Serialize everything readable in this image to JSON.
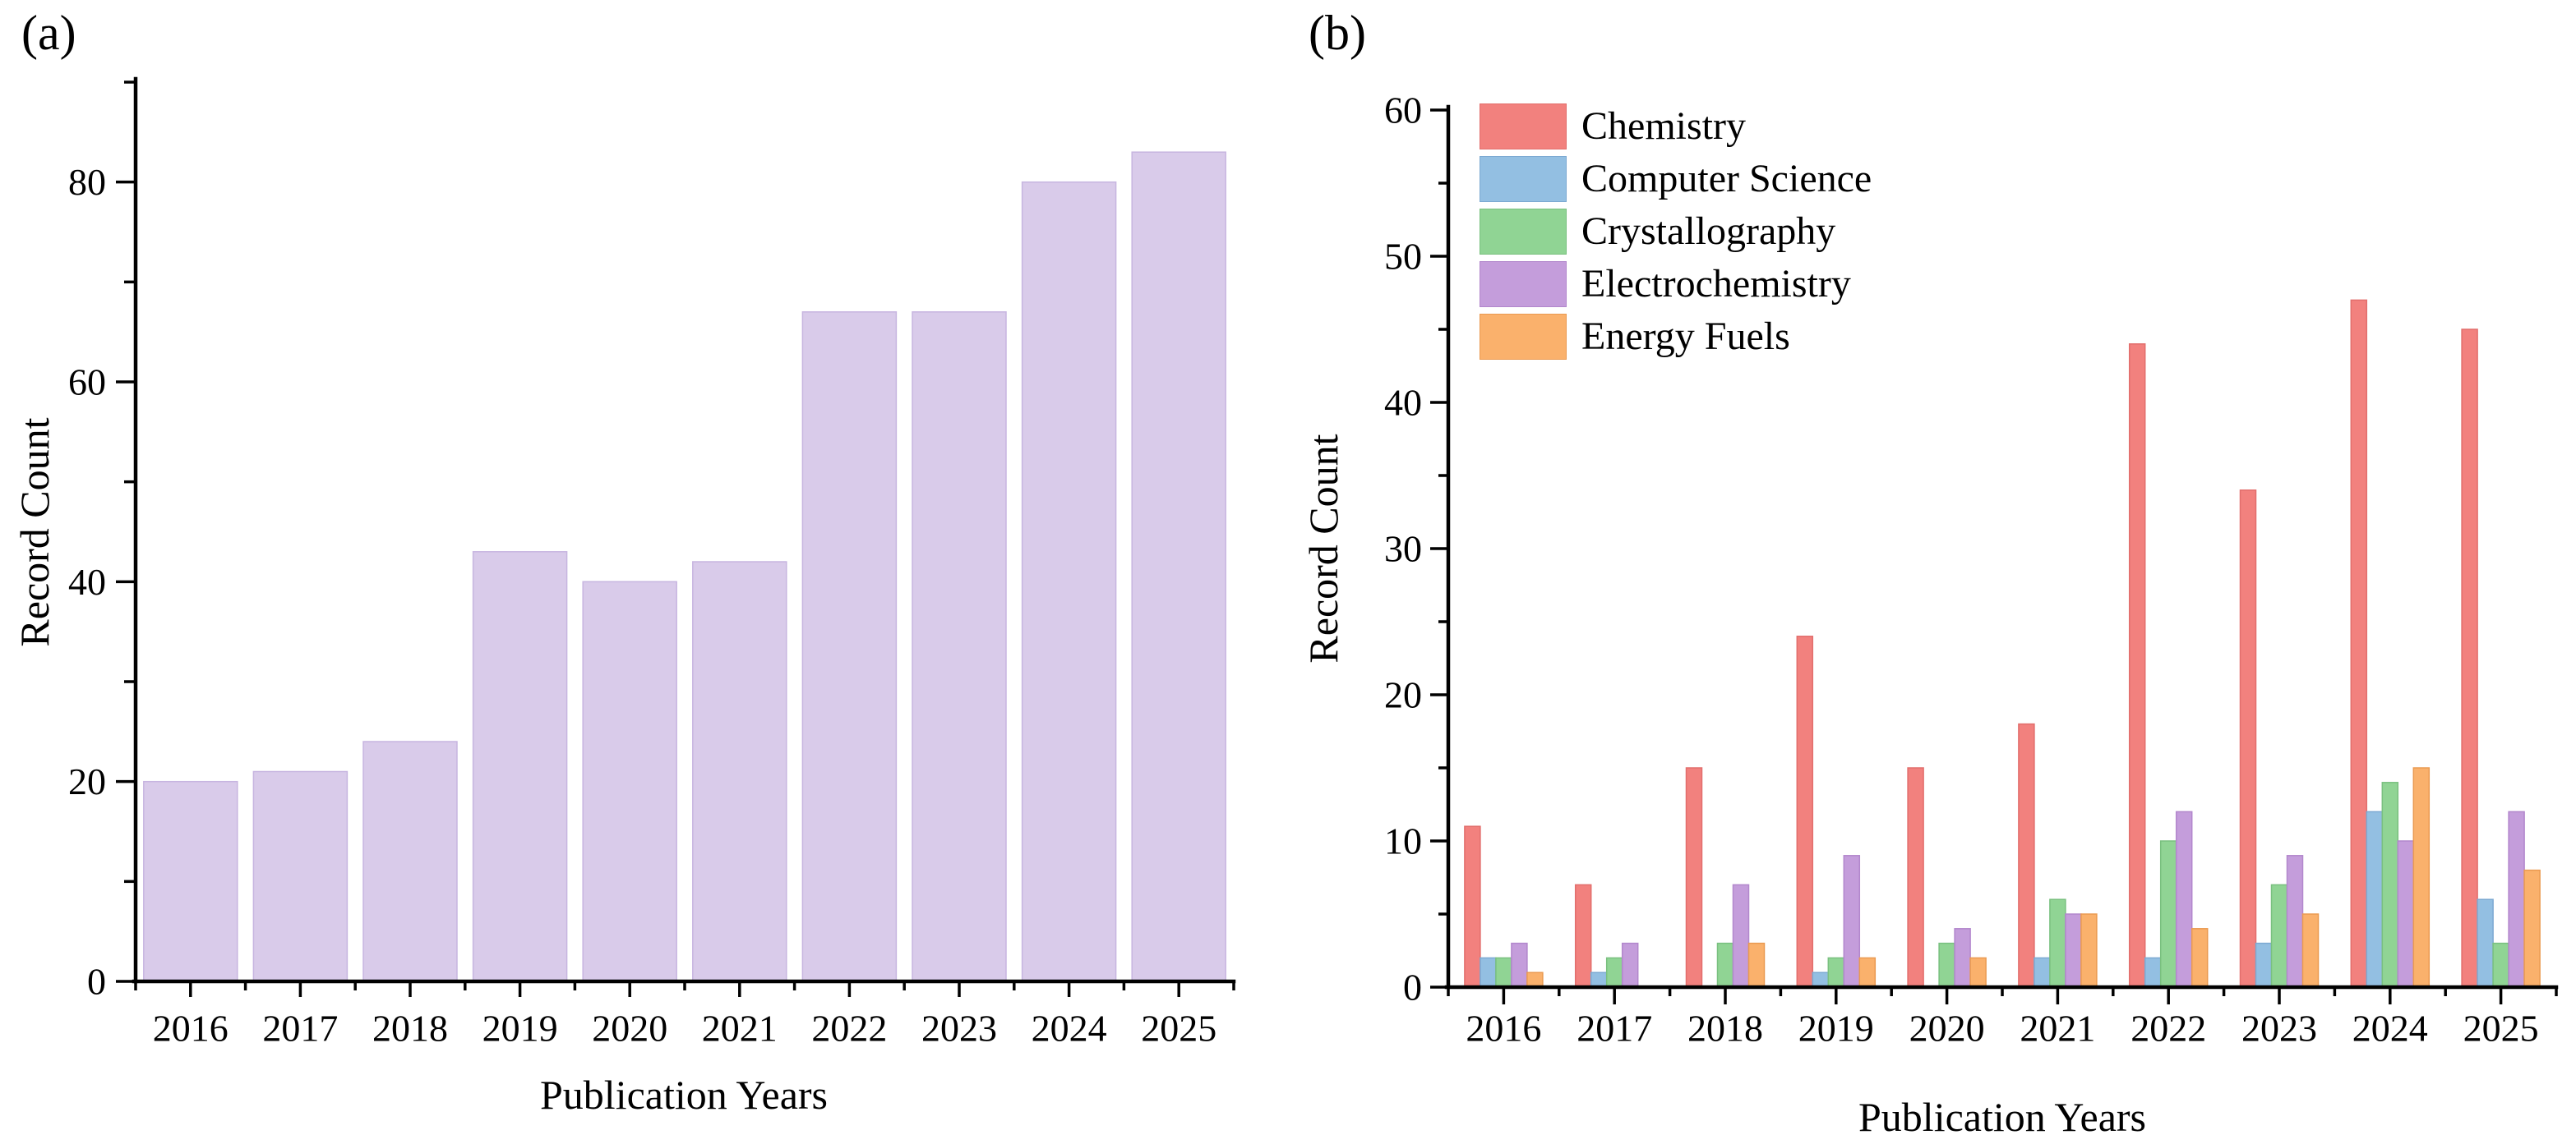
{
  "figure": {
    "background": "#ffffff",
    "panels": [
      {
        "label": "(a)"
      },
      {
        "label": "(b)"
      }
    ]
  },
  "chart_data": [
    {
      "type": "bar",
      "panel": "a",
      "title": "",
      "xlabel": "Publication Years",
      "ylabel": "Record Count",
      "categories": [
        "2016",
        "2017",
        "2018",
        "2019",
        "2020",
        "2021",
        "2022",
        "2023",
        "2024",
        "2025"
      ],
      "values": [
        20,
        21,
        24,
        43,
        40,
        42,
        67,
        67,
        80,
        83
      ],
      "ylim": [
        0,
        90
      ],
      "y_major_ticks": [
        0,
        20,
        40,
        60,
        80
      ],
      "y_minor_ticks": [
        10,
        30,
        50,
        70,
        90
      ],
      "bar_color": "#D9CBEA",
      "bar_edge_color": "#C7B5E0",
      "axis_color": "#000000",
      "grid": false,
      "legend_position": "none"
    },
    {
      "type": "bar",
      "panel": "b",
      "title": "",
      "xlabel": "Publication Years",
      "ylabel": "Record Count",
      "categories": [
        "2016",
        "2017",
        "2018",
        "2019",
        "2020",
        "2021",
        "2022",
        "2023",
        "2024",
        "2025"
      ],
      "series": [
        {
          "name": "Chemistry",
          "color": "#F2817E",
          "edge_color": "#E26E6C",
          "values": [
            11,
            7,
            15,
            24,
            15,
            18,
            44,
            34,
            47,
            45
          ]
        },
        {
          "name": "Computer Science",
          "color": "#93BFE2",
          "edge_color": "#7CA9D2",
          "values": [
            2,
            1,
            0,
            1,
            0,
            2,
            2,
            3,
            12,
            6
          ]
        },
        {
          "name": "Crystallography",
          "color": "#90D494",
          "edge_color": "#79C07F",
          "values": [
            2,
            2,
            3,
            2,
            3,
            6,
            10,
            7,
            14,
            3
          ]
        },
        {
          "name": "Electrochemistry",
          "color": "#C49DDB",
          "edge_color": "#B287CC",
          "values": [
            3,
            3,
            7,
            9,
            4,
            5,
            12,
            9,
            10,
            12
          ]
        },
        {
          "name": "Energy Fuels",
          "color": "#FAB16C",
          "edge_color": "#EA9A51",
          "values": [
            1,
            0,
            3,
            2,
            2,
            5,
            4,
            5,
            15,
            8
          ]
        }
      ],
      "ylim": [
        0,
        60
      ],
      "y_major_ticks": [
        0,
        10,
        20,
        30,
        40,
        50,
        60
      ],
      "y_minor_ticks": [
        5,
        15,
        25,
        35,
        45,
        55
      ],
      "axis_color": "#000000",
      "grid": false,
      "legend_position": "top-left"
    }
  ]
}
